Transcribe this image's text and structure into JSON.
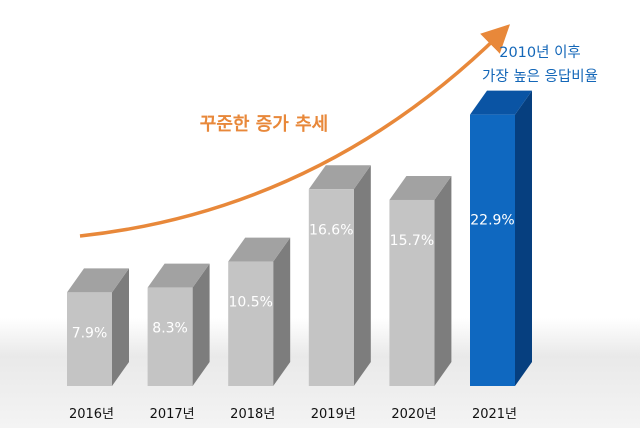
{
  "chart_data": {
    "type": "bar",
    "categories": [
      "2016년",
      "2017년",
      "2018년",
      "2019년",
      "2020년",
      "2021년"
    ],
    "values": [
      7.9,
      8.3,
      10.5,
      16.6,
      15.7,
      22.9
    ],
    "value_labels": [
      "7.9%",
      "8.3%",
      "10.5%",
      "16.6%",
      "15.7%",
      "22.9%"
    ],
    "unit": "%",
    "highlight_index": 5,
    "trend_label": "꾸준한 증가 추세",
    "annotation": [
      "2010년 이후",
      "가장 높은 응답비율"
    ],
    "title": "",
    "xlabel": "",
    "ylabel": "",
    "grid": false,
    "legend": "none",
    "colors": {
      "bar_front": "#c4c4c4",
      "bar_side": "#7d7d7d",
      "bar_top": "#a2a2a2",
      "highlight_front": "#0f68c0",
      "highlight_side": "#063f7f",
      "highlight_top": "#0a54a4",
      "trend_arrow": "#e8883a",
      "annotation_text": "#1467b8",
      "value_label": "#ffffff",
      "category_label": "#111111",
      "floor": "#e6e6e6"
    }
  }
}
